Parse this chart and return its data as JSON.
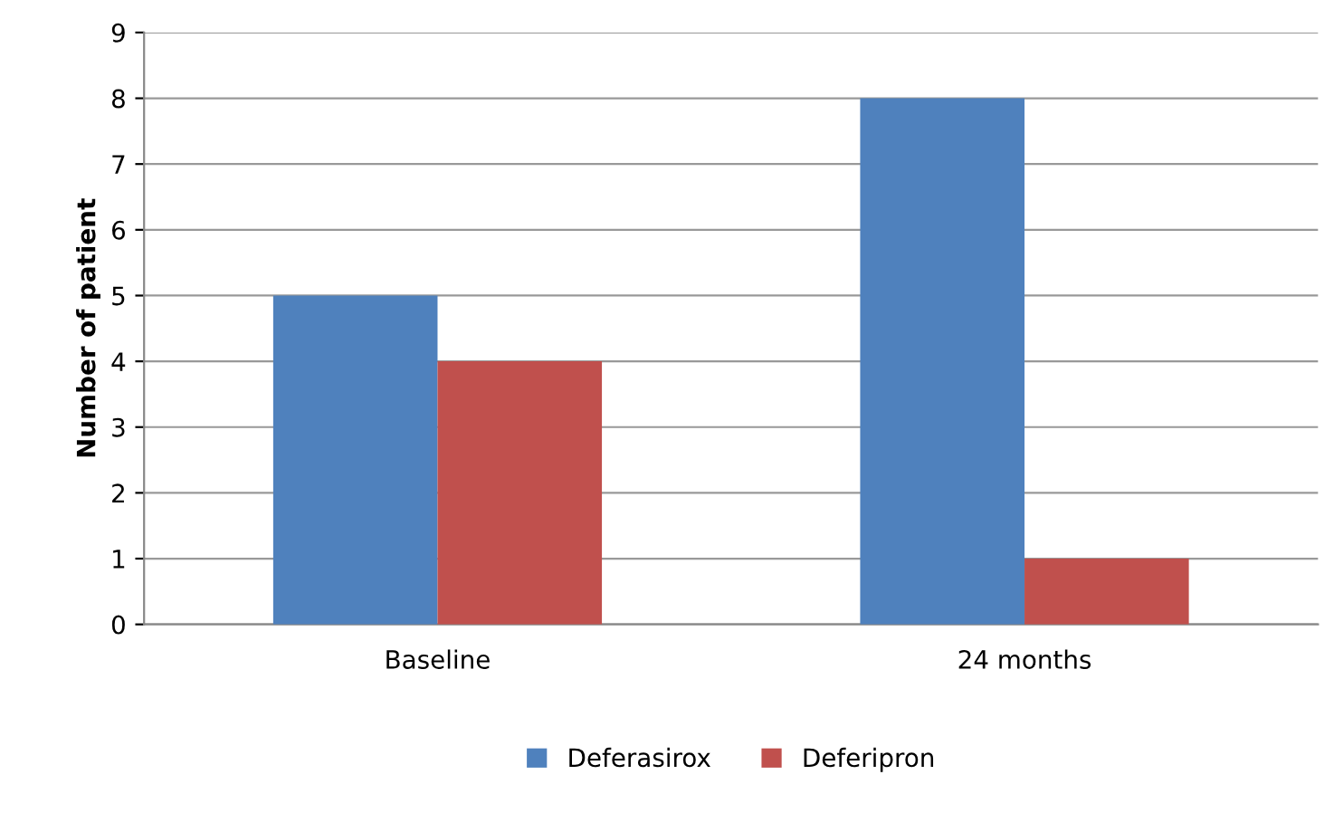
{
  "chart_data": {
    "type": "bar",
    "ylabel": "Number of patient",
    "categories": [
      "Baseline",
      "24 months"
    ],
    "series": [
      {
        "name": "Deferasirox",
        "color": "#4f81bd",
        "values": [
          5,
          8
        ]
      },
      {
        "name": "Deferipron",
        "color": "#c0504d",
        "values": [
          4,
          1
        ]
      }
    ],
    "ylim": [
      0,
      9
    ],
    "yticks": [
      0,
      1,
      2,
      3,
      4,
      5,
      6,
      7,
      8,
      9
    ],
    "grid": "y",
    "legend": "bottom"
  }
}
